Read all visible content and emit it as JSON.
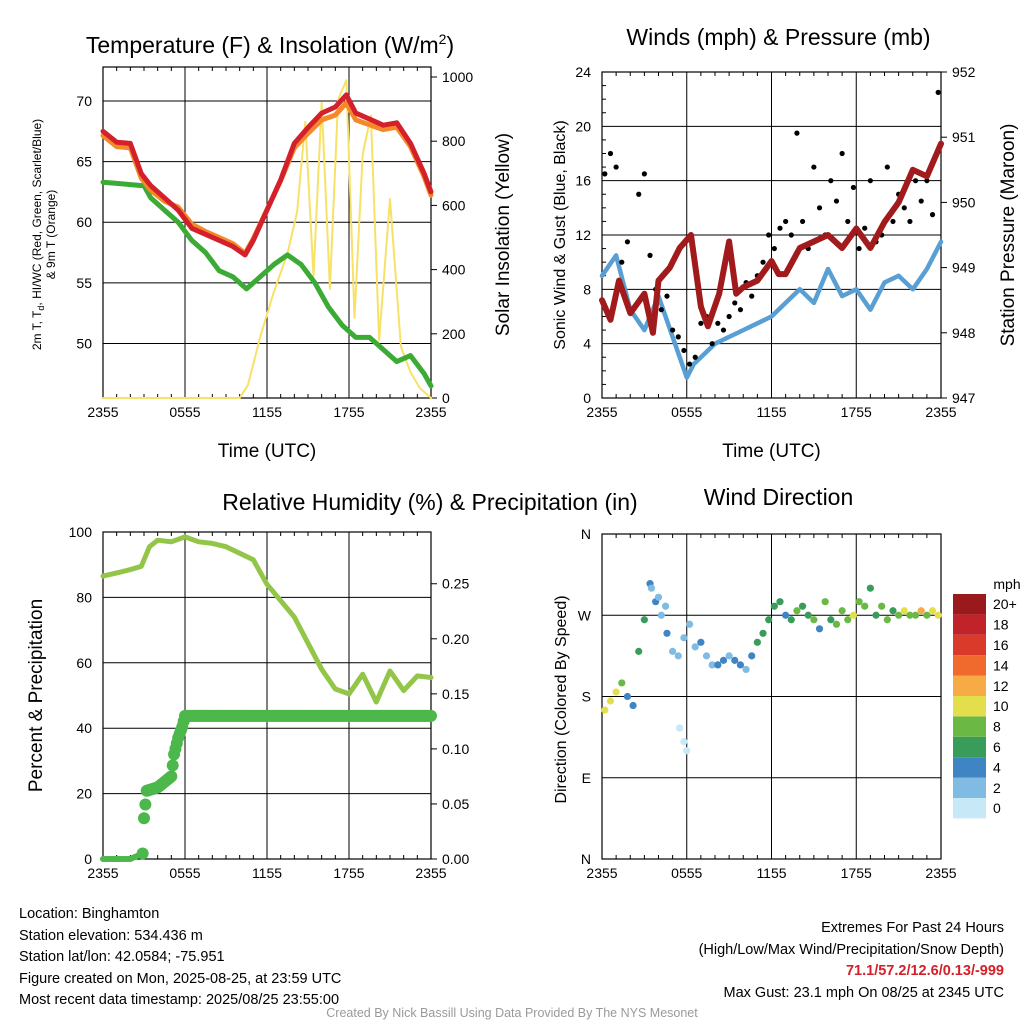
{
  "colors": {
    "temp": "#d3202a",
    "dew": "#3cab36",
    "heat_index": "#1f8a2f",
    "temp_9m": "#f5892a",
    "solar": "#f7e167",
    "wind": "#5a9fd4",
    "gust": "#000000",
    "pressure": "#a11a1c",
    "rh": "#92c548",
    "precip": "#4cb74a"
  },
  "x_ticks": [
    "2355",
    "0555",
    "1155",
    "1755",
    "2355"
  ],
  "charts": [
    {
      "id": "temp",
      "title": "Temperature (F) & Insolation (W/m",
      "title_sup": "2",
      "title_close": ")",
      "xlabel": "Time (UTC)",
      "ylabel_lines": [
        "2m T, T",
        "d",
        ", HI/WC (Red, Green, Scarlet/Blue)",
        "& 9m T (Orange)"
      ],
      "ylabel_right": "Solar Insolation (Yellow)",
      "y_ticks": [
        "50",
        "55",
        "60",
        "65",
        "70"
      ],
      "y2_ticks": [
        "0",
        "200",
        "400",
        "600",
        "800",
        "1000"
      ]
    },
    {
      "id": "wind",
      "title": "Winds (mph) & Pressure (mb)",
      "xlabel": "Time (UTC)",
      "ylabel": "Sonic Wind & Gust (Blue, Black)",
      "ylabel_right": "Station Pressure (Maroon)",
      "y_ticks": [
        "0",
        "4",
        "8",
        "12",
        "16",
        "20",
        "24"
      ],
      "y2_ticks": [
        "947",
        "948",
        "949",
        "950",
        "951",
        "952"
      ]
    },
    {
      "id": "rh",
      "title": "Relative Humidity (%) & Precipitation (in)",
      "ylabel": "Percent & Precipitation",
      "y_ticks": [
        "0",
        "20",
        "40",
        "60",
        "80",
        "100"
      ],
      "y2_ticks": [
        "0.00",
        "0.05",
        "0.10",
        "0.15",
        "0.20",
        "0.25"
      ]
    },
    {
      "id": "dir",
      "title": "Wind Direction",
      "ylabel": "Direction (Colored By Speed)",
      "y_ticks": [
        "N",
        "E",
        "S",
        "W",
        "N"
      ],
      "colorbar": {
        "unit": "mph",
        "labels": [
          "0",
          "2",
          "4",
          "6",
          "8",
          "10",
          "12",
          "14",
          "16",
          "18",
          "20+"
        ],
        "colors": [
          "#c6e8f7",
          "#7fbbe3",
          "#3f85c4",
          "#3a9c5a",
          "#6cb845",
          "#e3df4c",
          "#f6ab45",
          "#ef6a2c",
          "#d93a2a",
          "#c0242a",
          "#99191d"
        ]
      }
    }
  ],
  "chart_data": [
    {
      "type": "line",
      "title": "Temperature (F) & Insolation (W/m2)",
      "xlabel": "Time (UTC)",
      "x_unit": "hours since 2355 UTC",
      "xlim": [
        0,
        24
      ],
      "ylim": [
        45.5,
        72.8
      ],
      "y2lim": [
        0,
        1000
      ],
      "series": [
        {
          "name": "2m T",
          "axis": "left",
          "color": "#d3202a",
          "x": [
            0,
            1,
            2,
            2.8,
            3.5,
            4.5,
            5.5,
            6.5,
            7.5,
            8.5,
            9.5,
            10.4,
            11,
            12,
            13,
            14,
            15,
            16,
            17,
            17.8,
            18.5,
            19.5,
            20.5,
            21.5,
            22.5,
            23.5,
            24
          ],
          "y": [
            67.5,
            66.6,
            66.5,
            64.0,
            63.0,
            62.0,
            61.0,
            59.5,
            59.0,
            58.5,
            58.0,
            57.3,
            58.5,
            61.0,
            63.5,
            66.5,
            67.8,
            69.0,
            69.5,
            70.5,
            69.0,
            68.5,
            68.0,
            68.2,
            66.5,
            64.0,
            62.5
          ]
        },
        {
          "name": "9m T",
          "axis": "left",
          "color": "#f5892a",
          "x": [
            0,
            1,
            2,
            2.8,
            3.5,
            4.5,
            5.5,
            6.5,
            7.5,
            8.5,
            9.5,
            10.4,
            11,
            12,
            13,
            14,
            15,
            16,
            17,
            17.8,
            18.5,
            19.5,
            20.5,
            21.5,
            22.5,
            23.5,
            24
          ],
          "y": [
            67.3,
            66.4,
            66.3,
            63.8,
            62.8,
            61.9,
            61.4,
            60.0,
            59.4,
            58.9,
            58.4,
            57.6,
            58.8,
            61.2,
            63.6,
            66.3,
            67.5,
            68.6,
            69.0,
            70.0,
            68.6,
            68.2,
            67.8,
            68.0,
            66.4,
            63.9,
            62.4
          ]
        },
        {
          "name": "Td",
          "axis": "left",
          "color": "#3cab36",
          "x": [
            0,
            1,
            2,
            3,
            3.5,
            4.5,
            5.5,
            6.5,
            7.5,
            8.5,
            9.5,
            10.5,
            11.5,
            12.5,
            13.5,
            14.5,
            15.5,
            16.5,
            17.5,
            18.5,
            19.5,
            20.5,
            21.5,
            22.5,
            23.5,
            24
          ],
          "y": [
            63.3,
            63.2,
            63.1,
            63.0,
            62.0,
            61.0,
            60.0,
            58.5,
            57.5,
            56.0,
            55.5,
            54.5,
            55.5,
            56.5,
            57.3,
            56.5,
            55.0,
            53.0,
            51.5,
            50.5,
            50.5,
            49.5,
            48.5,
            49.0,
            47.5,
            46.5
          ]
        },
        {
          "name": "Solar Insolation",
          "axis": "right",
          "color": "#f7e167",
          "x": [
            0,
            4,
            8,
            10,
            10.6,
            11.5,
            12.5,
            13.5,
            14.2,
            14.8,
            15.4,
            16.0,
            16.6,
            17.2,
            17.8,
            18.4,
            19.0,
            19.6,
            20.2,
            21.0,
            21.8,
            22.5,
            23.2,
            24
          ],
          "y": [
            0,
            0,
            0,
            0,
            40,
            190,
            330,
            450,
            580,
            860,
            380,
            920,
            340,
            930,
            990,
            250,
            760,
            880,
            180,
            620,
            160,
            80,
            30,
            0
          ]
        }
      ]
    },
    {
      "type": "line",
      "title": "Winds (mph) & Pressure (mb)",
      "xlabel": "Time (UTC)",
      "x_unit": "hours since 2355 UTC",
      "xlim": [
        0,
        24
      ],
      "ylim": [
        0,
        24
      ],
      "y2lim": [
        947,
        952
      ],
      "series": [
        {
          "name": "Sonic Wind",
          "axis": "left",
          "color": "#5a9fd4",
          "x": [
            0,
            1,
            2,
            3,
            4,
            5,
            5.5,
            6,
            6.5,
            7,
            8,
            9,
            10,
            11,
            12,
            13,
            14,
            15,
            16,
            17,
            18,
            19,
            20,
            21,
            22,
            23,
            24
          ],
          "y": [
            9.0,
            10.5,
            6.5,
            5.0,
            7.5,
            4.5,
            3.0,
            1.5,
            2.5,
            3.0,
            4.0,
            4.5,
            5.0,
            5.5,
            6.0,
            7.0,
            8.0,
            7.0,
            9.5,
            7.5,
            8.0,
            6.5,
            8.5,
            9.0,
            8.0,
            9.5,
            11.5
          ]
        },
        {
          "name": "Gust",
          "axis": "left",
          "color": "#000000",
          "x": [
            0.2,
            0.6,
            1.0,
            1.4,
            1.8,
            2.6,
            3.0,
            3.4,
            3.8,
            4.2,
            4.6,
            5.0,
            5.4,
            5.8,
            6.2,
            6.6,
            7.0,
            7.4,
            7.8,
            8.2,
            8.6,
            9.0,
            9.4,
            9.8,
            10.2,
            10.6,
            11.0,
            11.4,
            11.8,
            12.2,
            12.6,
            13.0,
            13.4,
            13.8,
            14.2,
            14.6,
            15.0,
            15.4,
            15.8,
            16.2,
            16.6,
            17.0,
            17.4,
            17.8,
            18.2,
            18.6,
            19.0,
            19.4,
            19.8,
            20.2,
            20.6,
            21.0,
            21.4,
            21.8,
            22.2,
            22.6,
            23.0,
            23.4,
            23.8
          ],
          "y": [
            16.5,
            18.0,
            17.0,
            10.0,
            11.5,
            15.0,
            16.5,
            10.5,
            8.0,
            6.5,
            7.5,
            5.0,
            4.5,
            3.5,
            2.5,
            3.0,
            5.5,
            6.0,
            4.0,
            5.5,
            5.0,
            6.0,
            7.0,
            6.5,
            8.5,
            7.5,
            9.0,
            10.0,
            12.0,
            11.0,
            12.5,
            13.0,
            12.0,
            19.5,
            13.0,
            11.0,
            17.0,
            14.0,
            12.0,
            16.0,
            14.5,
            18.0,
            13.0,
            15.5,
            11.0,
            12.5,
            16.0,
            11.5,
            12.0,
            17.0,
            13.0,
            15.0,
            14.0,
            13.0,
            16.0,
            14.5,
            16.0,
            13.5,
            22.5
          ]
        },
        {
          "name": "Station Pressure",
          "axis": "right",
          "color": "#a11a1c",
          "x": [
            0,
            0.6,
            1.2,
            2,
            3,
            3.6,
            4,
            4.8,
            5.5,
            6.3,
            7,
            7.5,
            8.3,
            9,
            9.5,
            10,
            11,
            12,
            12.5,
            13,
            14,
            15,
            16,
            17,
            18,
            19,
            20,
            21,
            22,
            23,
            24
          ],
          "y": [
            948.5,
            948.2,
            948.8,
            948.3,
            948.6,
            948.0,
            948.8,
            949.0,
            949.3,
            949.5,
            948.4,
            948.1,
            948.6,
            949.4,
            948.6,
            948.7,
            948.8,
            949.1,
            948.9,
            948.9,
            949.3,
            949.4,
            949.5,
            949.3,
            949.6,
            949.3,
            949.7,
            950.0,
            950.5,
            950.4,
            950.9
          ]
        }
      ]
    },
    {
      "type": "line",
      "title": "Relative Humidity (%) & Precipitation (in)",
      "x_unit": "hours since 2355 UTC",
      "xlim": [
        0,
        24
      ],
      "ylim": [
        0,
        100
      ],
      "y2lim": [
        0,
        0.3
      ],
      "series": [
        {
          "name": "Relative Humidity",
          "axis": "left",
          "color": "#92c548",
          "x": [
            0,
            1,
            2,
            2.8,
            3.4,
            4,
            5,
            6,
            7,
            8,
            9,
            10,
            11,
            12,
            13,
            14,
            15,
            16,
            17,
            18,
            19,
            20,
            21,
            22,
            23,
            24
          ],
          "y": [
            86.5,
            87.5,
            88.5,
            89.5,
            95.5,
            97.5,
            97.0,
            98.5,
            97.0,
            96.5,
            95.5,
            93.5,
            91.5,
            84.0,
            79.0,
            74.0,
            66.0,
            58.0,
            52.0,
            50.5,
            56.5,
            48.0,
            57.5,
            51.5,
            56.0,
            55.5
          ]
        },
        {
          "name": "Precipitation",
          "axis": "right",
          "color": "#4cb74a",
          "x": [
            0,
            1,
            2,
            2.9,
            3.0,
            3.2,
            4,
            5,
            5.2,
            5.5,
            5.8,
            6,
            8,
            12,
            16,
            20,
            24
          ],
          "y": [
            0.0,
            0.0,
            0.0,
            0.005,
            0.037,
            0.062,
            0.065,
            0.075,
            0.095,
            0.11,
            0.12,
            0.13,
            0.13,
            0.13,
            0.13,
            0.13,
            0.13
          ]
        }
      ]
    },
    {
      "type": "scatter",
      "title": "Wind Direction",
      "x_unit": "hours since 2355 UTC",
      "xlim": [
        0,
        24
      ],
      "ylim": [
        0,
        360
      ],
      "series": [
        {
          "name": "Direction",
          "x": [
            0.2,
            0.6,
            1.0,
            1.4,
            1.8,
            2.2,
            2.6,
            3.0,
            3.4,
            3.8,
            4.2,
            4.6,
            5.0,
            5.4,
            5.8,
            6.2,
            6.6,
            7.0,
            7.4,
            7.8,
            8.2,
            8.6,
            9.0,
            9.4,
            9.8,
            10.2,
            10.6,
            11.0,
            11.4,
            11.8,
            12.2,
            12.6,
            13.0,
            13.4,
            13.8,
            14.2,
            14.6,
            15.0,
            15.4,
            15.8,
            16.2,
            16.6,
            17.0,
            17.4,
            17.8,
            18.2,
            18.6,
            19.0,
            19.4,
            19.8,
            20.2,
            20.6,
            21.0,
            21.4,
            21.8,
            22.2,
            22.6,
            23.0,
            23.4,
            23.8,
            5.5,
            5.8,
            6.0,
            3.5,
            4.0,
            4.5
          ],
          "y": [
            165,
            175,
            185,
            195,
            180,
            170,
            230,
            265,
            305,
            285,
            270,
            250,
            230,
            225,
            245,
            260,
            235,
            240,
            225,
            215,
            215,
            220,
            225,
            220,
            215,
            210,
            225,
            240,
            250,
            265,
            280,
            285,
            270,
            265,
            275,
            280,
            270,
            265,
            255,
            285,
            265,
            260,
            275,
            265,
            270,
            285,
            280,
            300,
            270,
            280,
            265,
            275,
            270,
            275,
            270,
            270,
            275,
            270,
            275,
            270,
            145,
            130,
            120,
            300,
            290,
            280
          ],
          "speed": [
            10,
            10,
            10,
            9,
            4,
            5,
            6,
            7,
            5,
            4,
            3,
            4,
            2,
            3,
            3,
            2,
            3,
            4,
            2,
            3,
            4,
            4,
            3,
            4,
            4,
            3,
            4,
            6,
            6,
            6,
            7,
            6,
            5,
            7,
            8,
            7,
            6,
            8,
            4,
            9,
            7,
            8,
            9,
            9,
            10,
            8,
            9,
            7,
            6,
            8,
            9,
            7,
            8,
            10,
            9,
            9,
            12,
            9,
            10,
            11,
            1,
            1,
            1,
            2,
            3,
            2
          ]
        }
      ]
    }
  ],
  "info": {
    "location": "Location: Binghamton",
    "elevation": "Station elevation: 534.436 m",
    "latlon": "Station lat/lon: 42.0584; -75.951",
    "created": "Figure created on Mon, 2025-08-25, at 23:59 UTC",
    "recent": "Most recent data timestamp: 2025/08/25 23:55:00"
  },
  "extremes": {
    "title": "Extremes For Past 24 Hours",
    "subtitle": "(High/Low/Max Wind/Precipitation/Snow Depth)",
    "values": "71.1/57.2/12.6/0.13/-999",
    "gust": "Max Gust: 23.1 mph On 08/25 at 2345 UTC"
  },
  "credit": "Created By Nick Bassill Using Data Provided By The NYS Mesonet"
}
